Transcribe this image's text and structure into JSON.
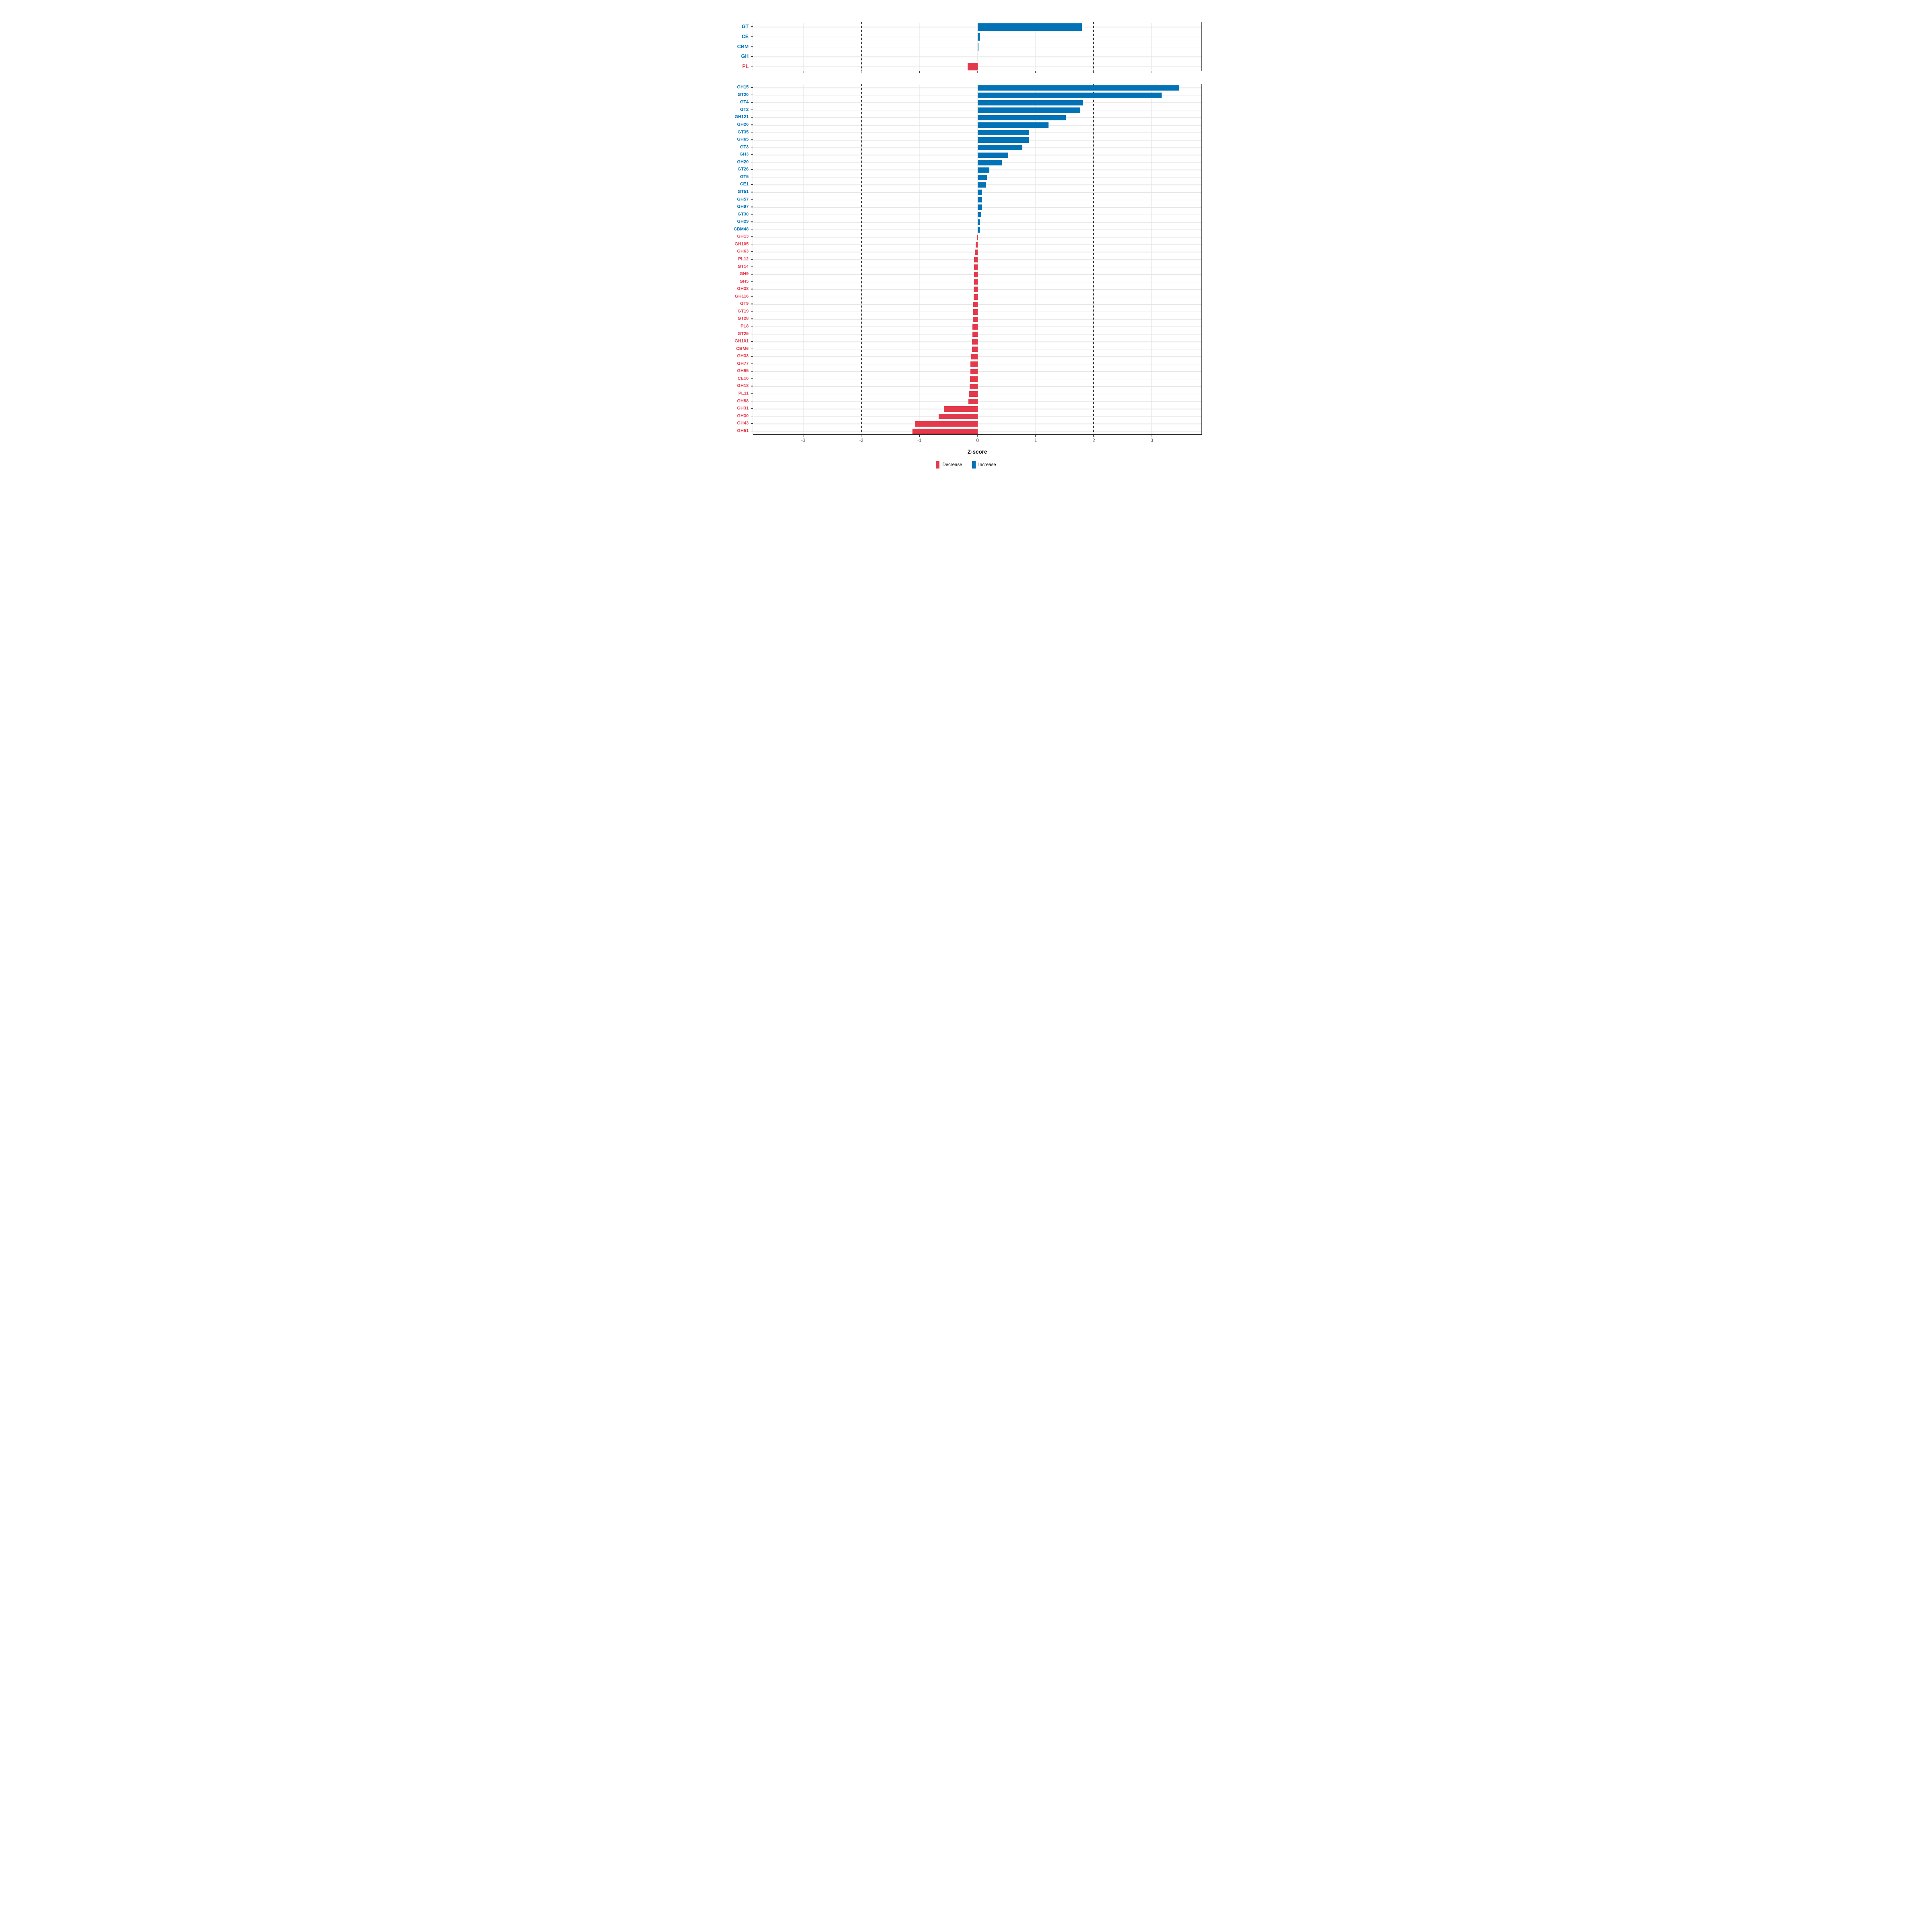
{
  "colors": {
    "increase": "#0072B5",
    "decrease": "#E3394A",
    "grid": "#E4E4E4",
    "dashed_line": "#3B3B3B",
    "axis_text": "#4D4D4D",
    "panel_border": "#262626"
  },
  "axis": {
    "label": "Z-score",
    "ticks": [
      "-3",
      "-2",
      "-1",
      "0",
      "1",
      "2",
      "3"
    ],
    "tick_values": [
      -3,
      -2,
      -1,
      0,
      1,
      2,
      3
    ],
    "xmin": -3.87,
    "xmax": 3.86,
    "dashed_at": [
      -2,
      2
    ]
  },
  "legend": {
    "items": [
      {
        "label": "Decrease",
        "type": "decrease"
      },
      {
        "label": "Increase",
        "type": "increase"
      }
    ]
  },
  "chart_data": [
    {
      "type": "bar",
      "orientation": "horizontal",
      "panel": "cazyme-classes",
      "xlabel": "Z-score",
      "xlim": [
        -3.87,
        3.86
      ],
      "grid": true,
      "categories": [
        "GT",
        "CE",
        "CBM",
        "GH",
        "PL"
      ],
      "values": [
        1.8,
        0.04,
        0.015,
        0.008,
        -0.17
      ]
    },
    {
      "type": "bar",
      "orientation": "horizontal",
      "panel": "cazyme-families",
      "xlabel": "Z-score",
      "xlim": [
        -3.87,
        3.86
      ],
      "grid": true,
      "categories": [
        "GH15",
        "GT20",
        "GT4",
        "GT2",
        "GH121",
        "GH26",
        "GT35",
        "GH65",
        "GT3",
        "GH3",
        "GH20",
        "GT26",
        "GT5",
        "CE1",
        "GT51",
        "GH57",
        "GH97",
        "GT30",
        "GH29",
        "CBM48",
        "GH13",
        "GH105",
        "GH63",
        "PL12",
        "GT14",
        "GH9",
        "GH5",
        "GH38",
        "GH116",
        "GT9",
        "GT19",
        "GT28",
        "PL8",
        "GT25",
        "GH101",
        "CBM6",
        "GH33",
        "GH77",
        "GH95",
        "CE10",
        "GH18",
        "PL11",
        "GH88",
        "GH31",
        "GH30",
        "GH43",
        "GH51"
      ],
      "values": [
        3.48,
        3.17,
        1.81,
        1.77,
        1.52,
        1.22,
        0.89,
        0.88,
        0.77,
        0.53,
        0.42,
        0.2,
        0.16,
        0.14,
        0.08,
        0.077,
        0.072,
        0.063,
        0.042,
        0.04,
        -0.005,
        -0.035,
        -0.05,
        -0.058,
        -0.06,
        -0.062,
        -0.063,
        -0.064,
        -0.067,
        -0.072,
        -0.076,
        -0.08,
        -0.088,
        -0.09,
        -0.092,
        -0.095,
        -0.112,
        -0.12,
        -0.122,
        -0.132,
        -0.134,
        -0.154,
        -0.156,
        -0.58,
        -0.67,
        -1.08,
        -1.12
      ]
    }
  ]
}
